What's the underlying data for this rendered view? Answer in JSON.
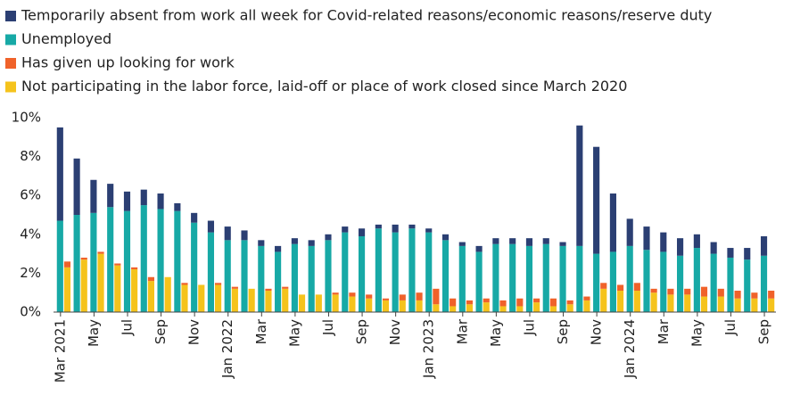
{
  "chart_data": {
    "type": "stacked_bar",
    "categories": [
      "Mar 2021",
      null,
      "May",
      null,
      "Jul",
      null,
      "Sep",
      null,
      "Nov",
      null,
      "Jan 2022",
      null,
      "Mar",
      null,
      "May",
      null,
      "Jul",
      null,
      "Sep",
      null,
      "Nov",
      null,
      "Jan 2023",
      null,
      "Mar",
      null,
      "May",
      null,
      "Jul",
      null,
      "Sep",
      null,
      "Nov",
      null,
      "Jan 2024",
      null,
      "Mar",
      null,
      "May",
      null,
      "Jul",
      null,
      "Sep"
    ],
    "series": [
      {
        "name": "Temporarily absent from work all week for Covid-related reasons/economic reasons/reserve duty",
        "color": "#2b3f73",
        "stack": 1,
        "values": [
          4.8,
          2.9,
          1.7,
          1.2,
          1.0,
          0.8,
          0.8,
          0.4,
          0.5,
          0.6,
          0.7,
          0.5,
          0.3,
          0.3,
          0.3,
          0.3,
          0.3,
          0.3,
          0.4,
          0.2,
          0.4,
          0.2,
          0.2,
          0.3,
          0.2,
          0.3,
          0.3,
          0.3,
          0.4,
          0.3,
          0.2,
          6.2,
          5.5,
          3.0,
          1.4,
          1.2,
          1.0,
          0.9,
          0.7,
          0.6,
          0.5,
          0.6,
          1.0
        ]
      },
      {
        "name": "Unemployed",
        "color": "#17a9a6",
        "stack": 1,
        "values": [
          4.7,
          5.0,
          5.1,
          5.4,
          5.2,
          5.5,
          5.3,
          5.2,
          4.6,
          4.1,
          3.7,
          3.7,
          3.4,
          3.1,
          3.5,
          3.4,
          3.7,
          4.1,
          3.9,
          4.3,
          4.1,
          4.3,
          4.1,
          3.7,
          3.4,
          3.1,
          3.5,
          3.5,
          3.4,
          3.5,
          3.4,
          3.4,
          3.0,
          3.1,
          3.4,
          3.2,
          3.1,
          2.9,
          3.3,
          3.0,
          2.8,
          2.7,
          2.9
        ]
      },
      {
        "name": "Has given up looking for work",
        "color": "#f0622a",
        "stack": 2,
        "values": [
          0.3,
          0.1,
          0.1,
          0.1,
          0.1,
          0.2,
          0.0,
          0.1,
          0.0,
          0.1,
          0.1,
          0.0,
          0.1,
          0.1,
          0.0,
          0.0,
          0.1,
          0.2,
          0.2,
          0.1,
          0.3,
          0.4,
          0.8,
          0.4,
          0.2,
          0.2,
          0.3,
          0.4,
          0.2,
          0.4,
          0.2,
          0.2,
          0.3,
          0.3,
          0.4,
          0.2,
          0.3,
          0.3,
          0.5,
          0.4,
          0.4,
          0.3,
          0.4
        ]
      },
      {
        "name": "Not participating in the labor force, laid-off or place of work closed since March 2020",
        "color": "#f5c31c",
        "stack": 2,
        "values": [
          2.3,
          2.7,
          3.0,
          2.4,
          2.2,
          1.6,
          1.8,
          1.4,
          1.4,
          1.4,
          1.2,
          1.2,
          1.1,
          1.2,
          0.9,
          0.9,
          0.9,
          0.8,
          0.7,
          0.6,
          0.6,
          0.6,
          0.4,
          0.3,
          0.4,
          0.5,
          0.3,
          0.3,
          0.5,
          0.3,
          0.4,
          0.6,
          1.2,
          1.1,
          1.1,
          1.0,
          0.9,
          0.9,
          0.8,
          0.8,
          0.7,
          0.7,
          0.7
        ]
      }
    ],
    "ylim": [
      0,
      10
    ],
    "yticks": [
      {
        "value": 0,
        "label": "0%"
      },
      {
        "value": 2,
        "label": "2%"
      },
      {
        "value": 4,
        "label": "4%"
      },
      {
        "value": 6,
        "label": "6%"
      },
      {
        "value": 8,
        "label": "8%"
      },
      {
        "value": 10,
        "label": "10%"
      }
    ],
    "legend": "top-left",
    "grid": false
  }
}
